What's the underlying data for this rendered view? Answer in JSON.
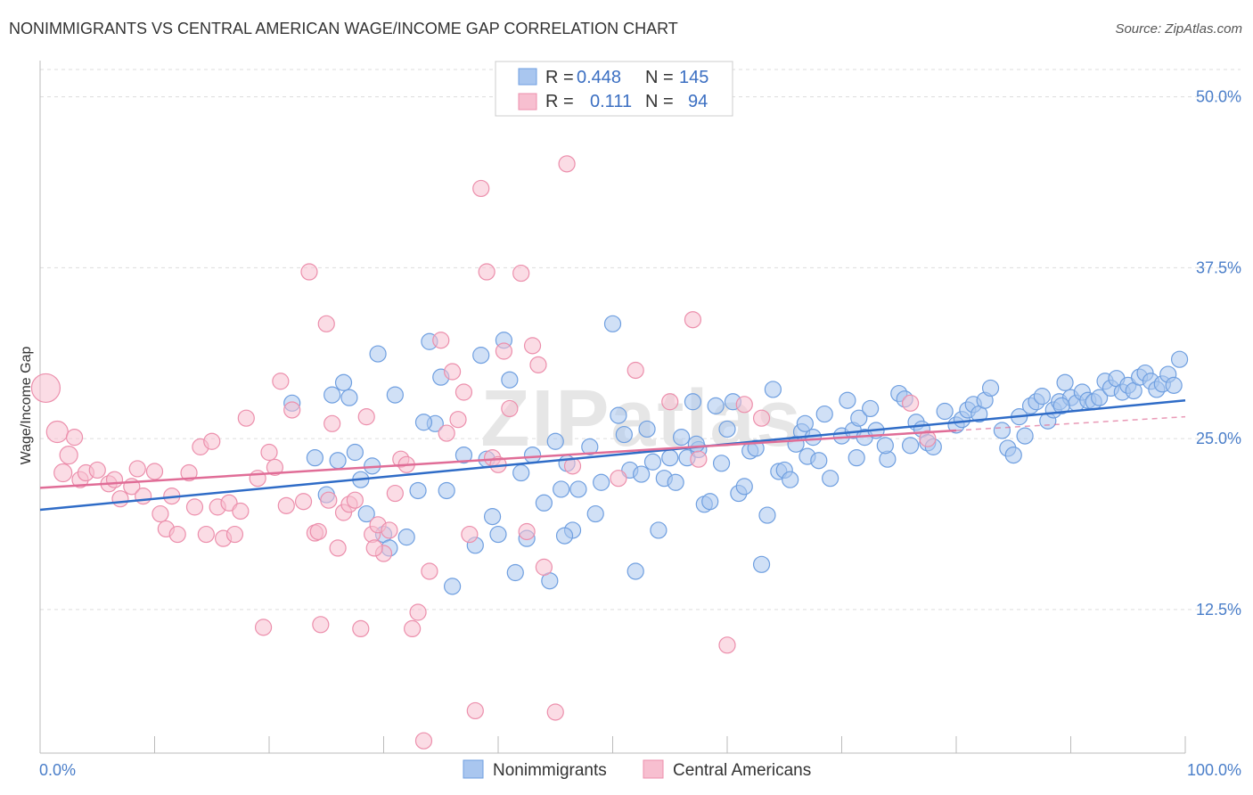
{
  "title": "NONIMMIGRANTS VS CENTRAL AMERICAN WAGE/INCOME GAP CORRELATION CHART",
  "source": "Source: ZipAtlas.com",
  "watermark": "ZIPatlas",
  "chart_data": {
    "type": "scatter",
    "xlabel": "",
    "ylabel": "Wage/Income Gap",
    "xlim": [
      0,
      100
    ],
    "ylim": [
      2,
      52
    ],
    "x_ticks": [
      "0.0%",
      "100.0%"
    ],
    "y_ticks": [
      {
        "value": 12.5,
        "label": "12.5%"
      },
      {
        "value": 25.0,
        "label": "25.0%"
      },
      {
        "value": 37.5,
        "label": "37.5%"
      },
      {
        "value": 50.0,
        "label": "50.0%"
      }
    ],
    "grid": "horizontal-dashed",
    "legend": {
      "position": "top-center",
      "rows": [
        {
          "r_label": "R =",
          "r_value": "0.448",
          "n_label": "N =",
          "n_value": "145"
        },
        {
          "r_label": "R =",
          "r_value": "0.111",
          "n_label": "N =",
          "n_value": "94"
        }
      ]
    },
    "series": [
      {
        "name": "Nonimmigrants",
        "color": "#a9c6ef",
        "stroke": "#6f9fe0",
        "trend": {
          "x": [
            0,
            100
          ],
          "y": [
            19.8,
            27.8
          ],
          "color": "#2f6cc7"
        },
        "points": [
          [
            22,
            27.6
          ],
          [
            24,
            23.6
          ],
          [
            25,
            20.9
          ],
          [
            25.5,
            28.2
          ],
          [
            26,
            23.4
          ],
          [
            26.5,
            29.1
          ],
          [
            27,
            28.0
          ],
          [
            27.5,
            24.0
          ],
          [
            28,
            22.0
          ],
          [
            28.5,
            19.5
          ],
          [
            29,
            23.0
          ],
          [
            29.5,
            31.2
          ],
          [
            30,
            18.0
          ],
          [
            30.5,
            17.0
          ],
          [
            31,
            28.2
          ],
          [
            32,
            17.8
          ],
          [
            33,
            21.2
          ],
          [
            34,
            32.1
          ],
          [
            34.5,
            26.1
          ],
          [
            35,
            29.5
          ],
          [
            35.5,
            21.2
          ],
          [
            36,
            14.2
          ],
          [
            37,
            23.8
          ],
          [
            38,
            17.2
          ],
          [
            38.5,
            31.1
          ],
          [
            39,
            23.5
          ],
          [
            39.5,
            19.3
          ],
          [
            40,
            18.0
          ],
          [
            40.5,
            32.2
          ],
          [
            41,
            29.3
          ],
          [
            41.5,
            15.2
          ],
          [
            42,
            22.5
          ],
          [
            42.5,
            17.7
          ],
          [
            43,
            23.8
          ],
          [
            44,
            20.3
          ],
          [
            44.5,
            14.6
          ],
          [
            45,
            24.8
          ],
          [
            45.5,
            21.3
          ],
          [
            46,
            23.2
          ],
          [
            46.5,
            18.3
          ],
          [
            47,
            21.3
          ],
          [
            48,
            24.4
          ],
          [
            48.5,
            19.5
          ],
          [
            49,
            21.8
          ],
          [
            50,
            33.4
          ],
          [
            50.5,
            26.7
          ],
          [
            51,
            25.3
          ],
          [
            51.5,
            22.7
          ],
          [
            52,
            15.3
          ],
          [
            52.5,
            22.4
          ],
          [
            53,
            25.7
          ],
          [
            53.5,
            23.3
          ],
          [
            54,
            18.3
          ],
          [
            54.5,
            22.1
          ],
          [
            55,
            23.6
          ],
          [
            55.5,
            21.8
          ],
          [
            56,
            25.1
          ],
          [
            56.5,
            23.6
          ],
          [
            57,
            27.7
          ],
          [
            57.5,
            24.2
          ],
          [
            58,
            20.2
          ],
          [
            58.5,
            20.4
          ],
          [
            59,
            27.4
          ],
          [
            59.5,
            23.2
          ],
          [
            60,
            25.7
          ],
          [
            60.5,
            27.7
          ],
          [
            61,
            21.0
          ],
          [
            61.5,
            21.5
          ],
          [
            62,
            24.1
          ],
          [
            62.5,
            24.3
          ],
          [
            63,
            15.8
          ],
          [
            63.5,
            19.4
          ],
          [
            64,
            28.6
          ],
          [
            64.5,
            22.6
          ],
          [
            65,
            22.7
          ],
          [
            65.5,
            22.0
          ],
          [
            66,
            24.6
          ],
          [
            66.5,
            25.5
          ],
          [
            67,
            23.7
          ],
          [
            67.5,
            25.1
          ],
          [
            68,
            23.4
          ],
          [
            68.5,
            26.8
          ],
          [
            69,
            22.1
          ],
          [
            70,
            25.2
          ],
          [
            70.5,
            27.8
          ],
          [
            71,
            25.6
          ],
          [
            71.5,
            26.5
          ],
          [
            72,
            25.1
          ],
          [
            72.5,
            27.2
          ],
          [
            73,
            25.6
          ],
          [
            74,
            23.5
          ],
          [
            75,
            28.3
          ],
          [
            75.5,
            27.9
          ],
          [
            76,
            24.5
          ],
          [
            76.5,
            26.2
          ],
          [
            77,
            25.7
          ],
          [
            77.5,
            24.7
          ],
          [
            78,
            24.4
          ],
          [
            79,
            27.0
          ],
          [
            80,
            26.0
          ],
          [
            80.5,
            26.4
          ],
          [
            81,
            27.1
          ],
          [
            81.5,
            27.5
          ],
          [
            82,
            26.8
          ],
          [
            82.5,
            27.8
          ],
          [
            83,
            28.7
          ],
          [
            84,
            25.6
          ],
          [
            84.5,
            24.3
          ],
          [
            85,
            23.8
          ],
          [
            85.5,
            26.6
          ],
          [
            86,
            25.2
          ],
          [
            86.5,
            27.4
          ],
          [
            87,
            27.7
          ],
          [
            87.5,
            28.1
          ],
          [
            88,
            26.3
          ],
          [
            88.5,
            27.1
          ],
          [
            89,
            27.7
          ],
          [
            89.5,
            29.1
          ],
          [
            90,
            28.0
          ],
          [
            90.5,
            27.6
          ],
          [
            91,
            28.4
          ],
          [
            91.5,
            27.8
          ],
          [
            92,
            27.7
          ],
          [
            92.5,
            28.0
          ],
          [
            93,
            29.2
          ],
          [
            93.5,
            28.7
          ],
          [
            94,
            29.4
          ],
          [
            94.5,
            28.4
          ],
          [
            95,
            28.9
          ],
          [
            95.5,
            28.5
          ],
          [
            96,
            29.5
          ],
          [
            96.5,
            29.8
          ],
          [
            97,
            29.2
          ],
          [
            97.5,
            28.6
          ],
          [
            98,
            29.0
          ],
          [
            98.5,
            29.7
          ],
          [
            99,
            28.9
          ],
          [
            99.5,
            30.8
          ],
          [
            33.5,
            26.2
          ],
          [
            45.8,
            17.9
          ],
          [
            57.3,
            24.6
          ],
          [
            66.8,
            26.1
          ],
          [
            73.8,
            24.5
          ],
          [
            89.2,
            27.4
          ],
          [
            71.3,
            23.6
          ]
        ],
        "sizes": {
          "default": 9
        }
      },
      {
        "name": "Central Americans",
        "color": "#f7bfd0",
        "stroke": "#ec8fac",
        "trend": {
          "x": [
            0,
            80
          ],
          "y": [
            21.4,
            25.6
          ],
          "color": "#e06d97",
          "dashed_ext": {
            "x": [
              80,
              100
            ],
            "y": [
              25.6,
              26.6
            ]
          }
        },
        "points": [
          [
            0.5,
            28.7
          ],
          [
            1.5,
            25.5
          ],
          [
            2,
            22.5
          ],
          [
            2.5,
            23.8
          ],
          [
            3,
            25.1
          ],
          [
            3.5,
            22.0
          ],
          [
            4,
            22.5
          ],
          [
            5,
            22.7
          ],
          [
            6,
            21.7
          ],
          [
            6.5,
            22.0
          ],
          [
            7,
            20.6
          ],
          [
            8,
            21.5
          ],
          [
            8.5,
            22.8
          ],
          [
            9,
            20.8
          ],
          [
            10,
            22.6
          ],
          [
            10.5,
            19.5
          ],
          [
            11,
            18.4
          ],
          [
            11.5,
            20.8
          ],
          [
            12,
            18.0
          ],
          [
            13,
            22.5
          ],
          [
            13.5,
            20.0
          ],
          [
            14,
            24.4
          ],
          [
            14.5,
            18.0
          ],
          [
            15,
            24.8
          ],
          [
            15.5,
            20.0
          ],
          [
            16,
            17.7
          ],
          [
            16.5,
            20.3
          ],
          [
            17,
            18.0
          ],
          [
            17.5,
            19.7
          ],
          [
            18,
            26.5
          ],
          [
            19,
            22.1
          ],
          [
            19.5,
            11.2
          ],
          [
            20,
            24.0
          ],
          [
            20.5,
            22.9
          ],
          [
            21,
            29.2
          ],
          [
            21.5,
            20.1
          ],
          [
            22,
            27.1
          ],
          [
            23,
            20.4
          ],
          [
            23.5,
            37.2
          ],
          [
            24,
            18.1
          ],
          [
            24.5,
            11.4
          ],
          [
            25,
            33.4
          ],
          [
            25.5,
            26.1
          ],
          [
            26,
            17.0
          ],
          [
            26.5,
            19.6
          ],
          [
            27,
            20.2
          ],
          [
            27.5,
            20.5
          ],
          [
            28,
            11.1
          ],
          [
            28.5,
            26.6
          ],
          [
            29,
            18.0
          ],
          [
            29.5,
            18.7
          ],
          [
            30,
            16.6
          ],
          [
            30.5,
            18.3
          ],
          [
            31,
            21.0
          ],
          [
            31.5,
            23.5
          ],
          [
            32,
            23.1
          ],
          [
            32.5,
            11.1
          ],
          [
            33,
            12.3
          ],
          [
            33.5,
            2.9
          ],
          [
            34,
            15.3
          ],
          [
            35,
            32.2
          ],
          [
            35.5,
            25.4
          ],
          [
            36,
            29.9
          ],
          [
            36.5,
            26.4
          ],
          [
            37,
            28.4
          ],
          [
            37.5,
            18.0
          ],
          [
            38,
            5.1
          ],
          [
            38.5,
            43.3
          ],
          [
            39,
            37.2
          ],
          [
            39.5,
            23.6
          ],
          [
            40,
            23.1
          ],
          [
            40.5,
            31.4
          ],
          [
            41,
            27.2
          ],
          [
            42,
            37.1
          ],
          [
            42.5,
            18.2
          ],
          [
            43,
            31.8
          ],
          [
            43.5,
            30.4
          ],
          [
            44,
            15.6
          ],
          [
            45,
            5.0
          ],
          [
            46,
            45.1
          ],
          [
            52,
            30.0
          ],
          [
            55,
            27.7
          ],
          [
            57.5,
            23.5
          ],
          [
            57,
            33.7
          ],
          [
            60,
            9.9
          ],
          [
            61.5,
            27.5
          ],
          [
            63,
            26.5
          ],
          [
            46.5,
            23.0
          ],
          [
            50.5,
            22.1
          ],
          [
            76,
            27.6
          ],
          [
            77.5,
            25.0
          ],
          [
            29.2,
            17.0
          ],
          [
            25.2,
            20.5
          ],
          [
            24.3,
            18.2
          ]
        ],
        "sizes": {
          "default": 9
        }
      }
    ]
  },
  "legend_bottom": [
    {
      "label": "Nonimmigrants",
      "color": "#a9c6ef",
      "stroke": "#6f9fe0"
    },
    {
      "label": "Central Americans",
      "color": "#f7bfd0",
      "stroke": "#ec8fac"
    }
  ]
}
